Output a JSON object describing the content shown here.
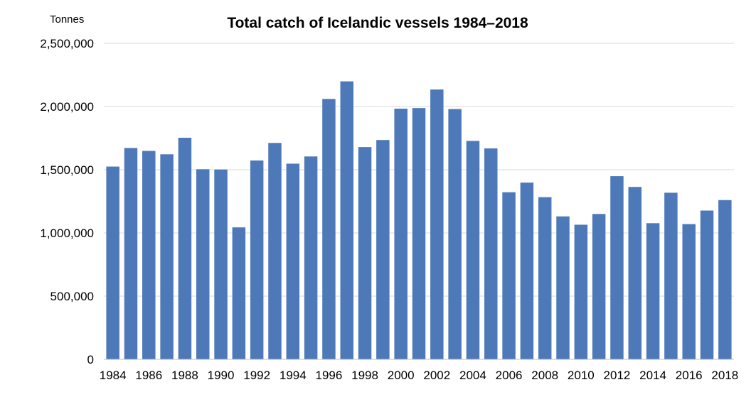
{
  "chart_data": {
    "type": "bar",
    "title": "Total catch of Icelandic vessels 1984–2018",
    "ylabel": "Tonnes",
    "xlabel": "",
    "ylim": [
      0,
      2500000
    ],
    "yticks": [
      0,
      500000,
      1000000,
      1500000,
      2000000,
      2500000
    ],
    "ytick_labels": [
      "0",
      "500,000",
      "1,000,000",
      "1,500,000",
      "2,000,000",
      "2,500,000"
    ],
    "grid": true,
    "legend": "none",
    "bar_color": "#4e79b8",
    "categories": [
      "1984",
      "1985",
      "1986",
      "1987",
      "1988",
      "1989",
      "1990",
      "1991",
      "1992",
      "1993",
      "1994",
      "1995",
      "1996",
      "1997",
      "1998",
      "1999",
      "2000",
      "2001",
      "2002",
      "2003",
      "2004",
      "2005",
      "2006",
      "2007",
      "2008",
      "2009",
      "2010",
      "2011",
      "2012",
      "2013",
      "2014",
      "2015",
      "2016",
      "2017",
      "2018"
    ],
    "x_tick_labels_shown": [
      "1984",
      "1986",
      "1988",
      "1990",
      "1992",
      "1994",
      "1996",
      "1998",
      "2000",
      "2002",
      "2004",
      "2006",
      "2008",
      "2010",
      "2012",
      "2014",
      "2016",
      "2018"
    ],
    "values": [
      1525000,
      1672000,
      1649000,
      1622000,
      1753000,
      1504000,
      1502000,
      1044000,
      1573000,
      1712000,
      1548000,
      1605000,
      2060000,
      2199000,
      1679000,
      1735000,
      1983000,
      1988000,
      2135000,
      1980000,
      1728000,
      1669000,
      1322000,
      1398000,
      1283000,
      1131000,
      1065000,
      1150000,
      1449000,
      1364000,
      1077000,
      1318000,
      1070000,
      1177000,
      1260000
    ]
  }
}
